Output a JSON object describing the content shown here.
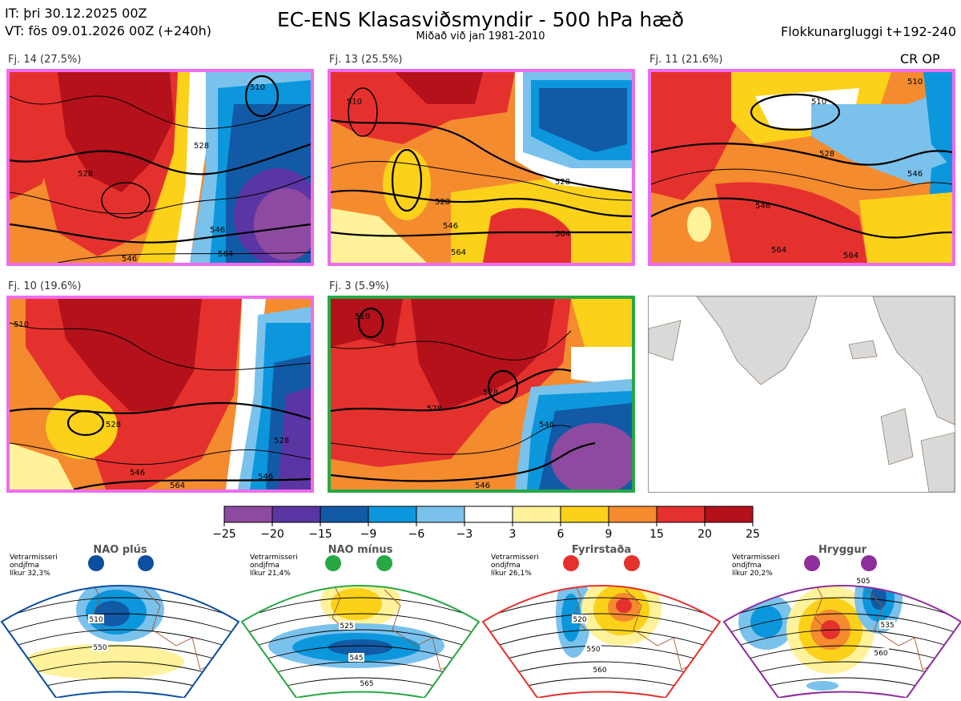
{
  "header": {
    "init_time": "IT: þri 30.12.2025 00Z",
    "valid_time": "VT: fös 09.01.2026 00Z  (+240h)",
    "title": "EC-ENS Klasasviðsmyndir - 500 hPa hæð",
    "subtitle": "Miðað við jan 1981-2010",
    "window": "Flokkunargluggi t+192-240",
    "cr_op": "CR OP"
  },
  "panels": [
    {
      "label": "Fj. 14 (27.5%)",
      "border": "#ee6cee",
      "contours": [
        "510",
        "528",
        "528",
        "546",
        "546",
        "564"
      ]
    },
    {
      "label": "Fj. 13 (25.5%)",
      "border": "#ee6cee",
      "contours": [
        "510",
        "528",
        "528",
        "546",
        "564",
        "564"
      ]
    },
    {
      "label": "Fj. 11 (21.6%)",
      "border": "#ee6cee",
      "contours": [
        "510",
        "510",
        "528",
        "546",
        "546",
        "564",
        "564"
      ]
    },
    {
      "label": "Fj. 10 (19.6%)",
      "border": "#ee6cee",
      "contours": [
        "510",
        "528",
        "528",
        "546",
        "546",
        "564"
      ]
    },
    {
      "label": "Fj. 3 (5.9%)",
      "border": "#27a844",
      "contours": [
        "510",
        "528",
        "528",
        "546",
        "546"
      ]
    }
  ],
  "chart_data": {
    "type": "heatmap",
    "title": "EC-ENS Klasasviðsmyndir - 500 hPa hæð",
    "colorbar": {
      "ticks": [
        "−25",
        "−20",
        "−15",
        "−9",
        "−6",
        "−3",
        "3",
        "6",
        "9",
        "15",
        "20",
        "25"
      ],
      "colors": [
        "#8e4aa1",
        "#5b35a3",
        "#125aa6",
        "#0c97dc",
        "#7ac2ec",
        "#ffffff",
        "#fff29a",
        "#fbd11a",
        "#f48b2e",
        "#e5312e",
        "#b4111b"
      ]
    },
    "regimes": [
      {
        "name": "NAO plús",
        "color": "#0c4ea0",
        "season": "Vetrarmisseri",
        "mode": "ondjfma",
        "prob": "líkur 32,3%",
        "contours": [
          "510",
          "550"
        ]
      },
      {
        "name": "NAO mínus",
        "color": "#27a844",
        "season": "Vetrarmisseri",
        "mode": "ondjfma",
        "prob": "líkur 21,4%",
        "contours": [
          "525",
          "545",
          "565"
        ]
      },
      {
        "name": "Fyrirstaða",
        "color": "#e5312e",
        "season": "Vetrarmisseri",
        "mode": "ondjfma",
        "prob": "líkur 26,1%",
        "contours": [
          "520",
          "550",
          "560"
        ]
      },
      {
        "name": "Hryggur",
        "color": "#8e2f9c",
        "season": "Vetrarmisseri",
        "mode": "ondjfma",
        "prob": "líkur 20,2%",
        "contours": [
          "505",
          "535",
          "560"
        ]
      }
    ]
  }
}
